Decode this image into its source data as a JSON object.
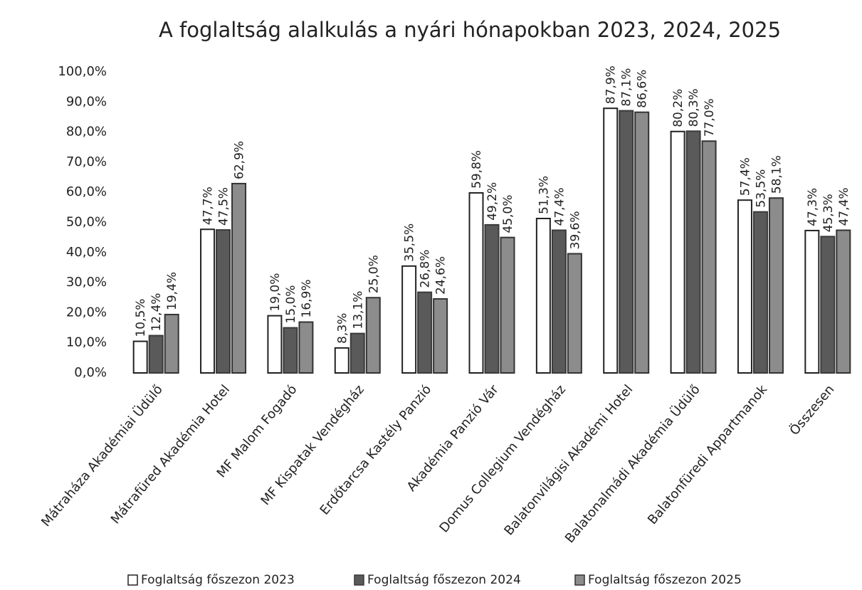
{
  "chart_data": {
    "type": "bar",
    "title": "A foglaltság alalkulás a nyári hónapokban 2023, 2024, 2025",
    "categories": [
      "Mátraháza Akadémiai Üdülő",
      "Mátrafüred Akadémia Hotel",
      "MF Malom Fogadó",
      "MF Kispatak Vendégház",
      "Erdőtarcsa Kastély Panzió",
      "Akadémia Panzió Vár",
      "Domus Collegium Vendégház",
      "Balatonvilágisi Akadémi Hotel",
      "Balatonalmádi Akadémia Üdülő",
      "Balatonfüredi Appartmanok",
      "Összesen"
    ],
    "series": [
      {
        "name": "Foglaltság főszezon 2023",
        "color": "#ffffff",
        "stroke": "#222222",
        "values": [
          10.5,
          47.7,
          19.0,
          8.3,
          35.5,
          59.8,
          51.3,
          87.9,
          80.2,
          57.4,
          47.3
        ],
        "value_labels": [
          "10,5%",
          "47,7%",
          "19,0%",
          "8,3%",
          "35,5%",
          "59,8%",
          "51,3%",
          "87,9%",
          "80,2%",
          "57,4%",
          "47,3%"
        ]
      },
      {
        "name": "Foglaltság főszezon 2024",
        "color": "#5a5a5a",
        "stroke": "#3a3a3a",
        "values": [
          12.4,
          47.5,
          15.0,
          13.1,
          26.8,
          49.2,
          47.4,
          87.1,
          80.3,
          53.5,
          45.3
        ],
        "value_labels": [
          "12,4%",
          "47,5%",
          "15,0%",
          "13,1%",
          "26,8%",
          "49,2%",
          "47,4%",
          "87,1%",
          "80,3%",
          "53,5%",
          "45,3%"
        ]
      },
      {
        "name": "Foglaltság főszezon 2025",
        "color": "#8c8c8c",
        "stroke": "#333333",
        "values": [
          19.4,
          62.9,
          16.9,
          25.0,
          24.6,
          45.0,
          39.6,
          86.6,
          77.0,
          58.1,
          47.4
        ],
        "value_labels": [
          "19,4%",
          "62,9%",
          "16,9%",
          "25,0%",
          "24,6%",
          "45,0%",
          "39,6%",
          "86,6%",
          "77,0%",
          "58,1%",
          "47,4%"
        ]
      }
    ],
    "ylim": [
      0,
      100
    ],
    "yticks": [
      {
        "value": 0,
        "label": "0,0%"
      },
      {
        "value": 10,
        "label": "10,0%"
      },
      {
        "value": 20,
        "label": "20,0%"
      },
      {
        "value": 30,
        "label": "30,0%"
      },
      {
        "value": 40,
        "label": "40,0%"
      },
      {
        "value": 50,
        "label": "50,0%"
      },
      {
        "value": 60,
        "label": "60,0%"
      },
      {
        "value": 70,
        "label": "70,0%"
      },
      {
        "value": 80,
        "label": "80,0%"
      },
      {
        "value": 90,
        "label": "90,0%"
      },
      {
        "value": 100,
        "label": "100,0%"
      }
    ],
    "grid": false,
    "legend": "bottom"
  }
}
